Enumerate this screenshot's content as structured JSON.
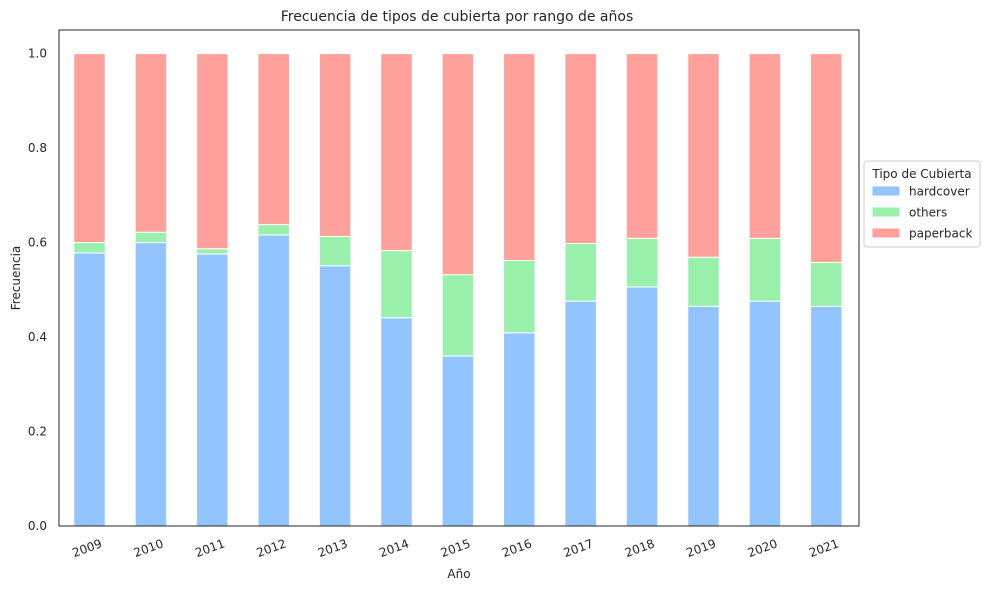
{
  "chart_data": {
    "type": "bar",
    "stacked": true,
    "title": "Frecuencia de tipos de cubierta por rango de años",
    "xlabel": "Año",
    "ylabel": "Frecuencia",
    "ylim": [
      0,
      1.05
    ],
    "yticks": [
      "0.0",
      "0.2",
      "0.4",
      "0.6",
      "0.8",
      "1.0"
    ],
    "categories": [
      "2009",
      "2010",
      "2011",
      "2012",
      "2013",
      "2014",
      "2015",
      "2016",
      "2017",
      "2018",
      "2019",
      "2020",
      "2021"
    ],
    "series": [
      {
        "name": "hardcover",
        "color": "#92c5fd",
        "values": [
          0.578,
          0.6,
          0.576,
          0.616,
          0.551,
          0.441,
          0.36,
          0.409,
          0.476,
          0.506,
          0.465,
          0.476,
          0.465
        ]
      },
      {
        "name": "others",
        "color": "#98f0aa",
        "values": [
          0.022,
          0.022,
          0.011,
          0.022,
          0.062,
          0.142,
          0.172,
          0.153,
          0.122,
          0.103,
          0.104,
          0.133,
          0.093
        ]
      },
      {
        "name": "paperback",
        "color": "#ffa09a",
        "values": [
          0.4,
          0.378,
          0.413,
          0.362,
          0.387,
          0.417,
          0.468,
          0.438,
          0.402,
          0.391,
          0.431,
          0.391,
          0.442
        ]
      }
    ],
    "grid": false,
    "legend": {
      "title": "Tipo de Cubierta",
      "placement": "center-right outside"
    }
  }
}
